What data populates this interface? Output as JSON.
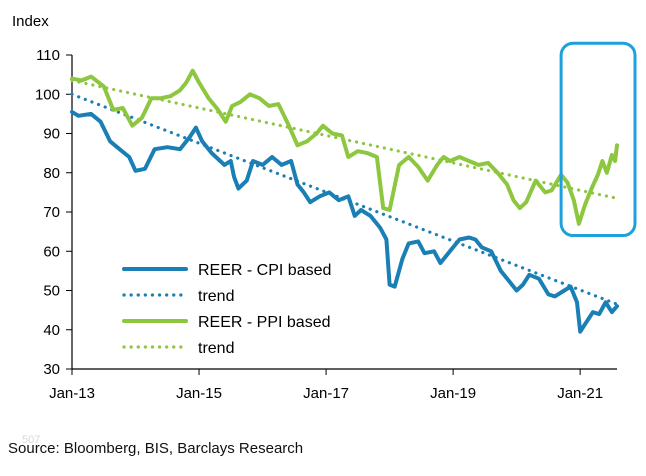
{
  "chart_data": {
    "type": "line",
    "title": "",
    "ylabel": "Index",
    "xlabel": "",
    "ylim": [
      30,
      110
    ],
    "yticks": [
      30,
      40,
      50,
      60,
      70,
      80,
      90,
      100,
      110
    ],
    "xlim": [
      2013.0,
      2021.58
    ],
    "xticks": [
      {
        "label": "Jan-13",
        "x": 2013.0
      },
      {
        "label": "Jan-15",
        "x": 2015.0
      },
      {
        "label": "Jan-17",
        "x": 2017.0
      },
      {
        "label": "Jan-19",
        "x": 2019.0
      },
      {
        "label": "Jan-21",
        "x": 2021.0
      }
    ],
    "series": [
      {
        "name": "REER - CPI based",
        "color": "#1a7fb5",
        "style": "solid",
        "points": [
          [
            2013.0,
            95.5
          ],
          [
            2013.1,
            94.5
          ],
          [
            2013.3,
            95
          ],
          [
            2013.45,
            93
          ],
          [
            2013.6,
            88
          ],
          [
            2013.75,
            86
          ],
          [
            2013.9,
            84
          ],
          [
            2014.0,
            80.5
          ],
          [
            2014.15,
            81
          ],
          [
            2014.3,
            86
          ],
          [
            2014.5,
            86.5
          ],
          [
            2014.7,
            86
          ],
          [
            2014.85,
            89
          ],
          [
            2014.95,
            91.5
          ],
          [
            2015.05,
            88
          ],
          [
            2015.2,
            85
          ],
          [
            2015.4,
            82
          ],
          [
            2015.5,
            83
          ],
          [
            2015.55,
            79
          ],
          [
            2015.62,
            76
          ],
          [
            2015.75,
            78
          ],
          [
            2015.85,
            83
          ],
          [
            2016.0,
            82
          ],
          [
            2016.15,
            84
          ],
          [
            2016.3,
            82
          ],
          [
            2016.45,
            83
          ],
          [
            2016.55,
            77
          ],
          [
            2016.65,
            75
          ],
          [
            2016.75,
            72.5
          ],
          [
            2016.9,
            74
          ],
          [
            2017.05,
            75
          ],
          [
            2017.2,
            73
          ],
          [
            2017.35,
            74
          ],
          [
            2017.45,
            69
          ],
          [
            2017.55,
            70.5
          ],
          [
            2017.7,
            69
          ],
          [
            2017.85,
            66
          ],
          [
            2017.95,
            63
          ],
          [
            2018.0,
            51.5
          ],
          [
            2018.08,
            51
          ],
          [
            2018.2,
            58
          ],
          [
            2018.3,
            62
          ],
          [
            2018.45,
            62.5
          ],
          [
            2018.55,
            59.5
          ],
          [
            2018.7,
            60
          ],
          [
            2018.8,
            57
          ],
          [
            2018.95,
            60
          ],
          [
            2019.1,
            63
          ],
          [
            2019.25,
            63.5
          ],
          [
            2019.35,
            63
          ],
          [
            2019.45,
            61
          ],
          [
            2019.6,
            60
          ],
          [
            2019.75,
            55
          ],
          [
            2019.9,
            52
          ],
          [
            2020.0,
            50
          ],
          [
            2020.1,
            51.5
          ],
          [
            2020.2,
            54
          ],
          [
            2020.35,
            53
          ],
          [
            2020.5,
            49
          ],
          [
            2020.6,
            48.5
          ],
          [
            2020.75,
            50
          ],
          [
            2020.85,
            51
          ],
          [
            2020.95,
            47
          ],
          [
            2021.0,
            39.5
          ],
          [
            2021.1,
            42
          ],
          [
            2021.2,
            44.5
          ],
          [
            2021.3,
            44
          ],
          [
            2021.4,
            47
          ],
          [
            2021.5,
            44.5
          ],
          [
            2021.58,
            46
          ]
        ]
      },
      {
        "name": "trend",
        "color": "#1a7fb5",
        "style": "dotted",
        "points": [
          [
            2013.0,
            100
          ],
          [
            2021.58,
            46.5
          ]
        ]
      },
      {
        "name": "REER - PPI based",
        "color": "#8dc63f",
        "style": "solid",
        "points": [
          [
            2013.0,
            104
          ],
          [
            2013.15,
            103.5
          ],
          [
            2013.3,
            104.5
          ],
          [
            2013.5,
            102
          ],
          [
            2013.65,
            96
          ],
          [
            2013.8,
            96.5
          ],
          [
            2013.95,
            92
          ],
          [
            2014.1,
            94
          ],
          [
            2014.25,
            99
          ],
          [
            2014.4,
            99
          ],
          [
            2014.55,
            99.5
          ],
          [
            2014.7,
            101
          ],
          [
            2014.8,
            103
          ],
          [
            2014.9,
            106
          ],
          [
            2015.0,
            103
          ],
          [
            2015.15,
            99
          ],
          [
            2015.3,
            96
          ],
          [
            2015.42,
            93
          ],
          [
            2015.52,
            97
          ],
          [
            2015.65,
            98
          ],
          [
            2015.8,
            100
          ],
          [
            2015.95,
            99
          ],
          [
            2016.1,
            97
          ],
          [
            2016.25,
            97.5
          ],
          [
            2016.4,
            92.5
          ],
          [
            2016.55,
            87
          ],
          [
            2016.7,
            88
          ],
          [
            2016.85,
            90
          ],
          [
            2016.95,
            92
          ],
          [
            2017.1,
            90
          ],
          [
            2017.25,
            89.5
          ],
          [
            2017.35,
            84
          ],
          [
            2017.5,
            85.5
          ],
          [
            2017.65,
            85
          ],
          [
            2017.8,
            84
          ],
          [
            2017.9,
            71
          ],
          [
            2018.0,
            70.5
          ],
          [
            2018.15,
            82
          ],
          [
            2018.3,
            84
          ],
          [
            2018.45,
            81.5
          ],
          [
            2018.6,
            78
          ],
          [
            2018.75,
            82
          ],
          [
            2018.85,
            84
          ],
          [
            2018.95,
            83
          ],
          [
            2019.1,
            84
          ],
          [
            2019.25,
            83
          ],
          [
            2019.4,
            82
          ],
          [
            2019.55,
            82.5
          ],
          [
            2019.7,
            80
          ],
          [
            2019.85,
            77
          ],
          [
            2019.95,
            73
          ],
          [
            2020.05,
            71
          ],
          [
            2020.15,
            72.5
          ],
          [
            2020.3,
            78
          ],
          [
            2020.45,
            75
          ],
          [
            2020.55,
            75.5
          ],
          [
            2020.7,
            79.5
          ],
          [
            2020.8,
            77.5
          ],
          [
            2020.9,
            73
          ],
          [
            2020.98,
            67
          ],
          [
            2021.08,
            72
          ],
          [
            2021.18,
            76
          ],
          [
            2021.28,
            79.5
          ],
          [
            2021.35,
            83
          ],
          [
            2021.42,
            80
          ],
          [
            2021.5,
            84.5
          ],
          [
            2021.55,
            83
          ],
          [
            2021.58,
            87
          ]
        ]
      },
      {
        "name": "trend",
        "color": "#8dc63f",
        "style": "dotted",
        "points": [
          [
            2013.0,
            103.5
          ],
          [
            2021.58,
            73.5
          ]
        ]
      }
    ],
    "legend": {
      "position": "lower-left",
      "entries": [
        {
          "label": "REER - CPI based",
          "color": "#1a7fb5",
          "style": "solid"
        },
        {
          "label": "trend",
          "color": "#1a7fb5",
          "style": "dotted"
        },
        {
          "label": "REER - PPI based",
          "color": "#8dc63f",
          "style": "solid"
        },
        {
          "label": "trend",
          "color": "#8dc63f",
          "style": "dotted"
        }
      ]
    },
    "highlight": {
      "x_range": [
        2020.7,
        2021.58
      ],
      "y_range": [
        64,
        113
      ],
      "color": "#1ea0dd"
    }
  },
  "source": "Source: Bloomberg, BIS, Barclays Research",
  "watermark": "507"
}
